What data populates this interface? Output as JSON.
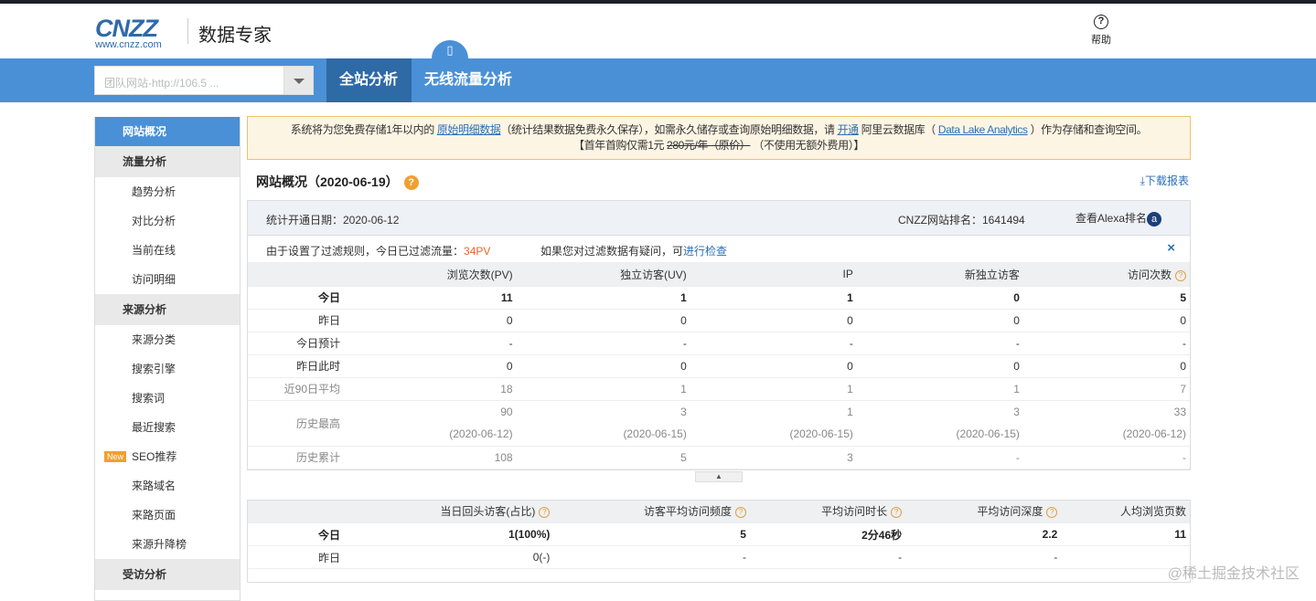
{
  "header": {
    "logo_text": "CNZZ",
    "logo_sub": "www.cnzz.com",
    "product": "数据专家",
    "help": "帮助"
  },
  "nav": {
    "site_select": "团队网站-http://106.5 ...",
    "tabs": [
      {
        "label": "全站分析",
        "active": true
      },
      {
        "label": "无线流量分析",
        "active": false
      }
    ]
  },
  "sidebar": {
    "items": [
      {
        "label": "网站概况",
        "type": "active"
      },
      {
        "label": "流量分析",
        "type": "group"
      },
      {
        "label": "趋势分析",
        "type": "item"
      },
      {
        "label": "对比分析",
        "type": "item"
      },
      {
        "label": "当前在线",
        "type": "item"
      },
      {
        "label": "访问明细",
        "type": "item"
      },
      {
        "label": "来源分析",
        "type": "group"
      },
      {
        "label": "来源分类",
        "type": "item"
      },
      {
        "label": "搜索引擎",
        "type": "item"
      },
      {
        "label": "搜索词",
        "type": "item"
      },
      {
        "label": "最近搜索",
        "type": "item"
      },
      {
        "label": "SEO推荐",
        "type": "item",
        "badge": "New"
      },
      {
        "label": "来路域名",
        "type": "item"
      },
      {
        "label": "来路页面",
        "type": "item"
      },
      {
        "label": "来源升降榜",
        "type": "item"
      },
      {
        "label": "受访分析",
        "type": "group"
      }
    ]
  },
  "notice": {
    "t1": "系统将为您免费存储1年以内的 ",
    "link1": "原始明细数据",
    "t2": "（统计结果数据免费永久保存），如需永久储存或查询原始明细数据，请 ",
    "link2": "开通",
    "t3": " 阿里云数据库（ ",
    "link3": "Data Lake Analytics",
    "t4": " ）作为存储和查询空间。",
    "t5": "【首年首购仅需1元 ",
    "strike": "280元/年（原价）",
    "t6": " （不使用无额外费用）】"
  },
  "overview": {
    "title": "网站概况（2020-06-19）",
    "download": "下载报表",
    "open_date": "统计开通日期：2020-06-12",
    "rank": "CNZZ网站排名：1641494",
    "alexa": "查看Alexa排名",
    "filter_text": "由于设置了过滤规则，今日已过滤流量：",
    "filter_value": "34PV",
    "filter_q": "如果您对过滤数据有疑问，可",
    "filter_link": "进行检查",
    "close": "×",
    "columns": [
      "浏览次数(PV)",
      "独立访客(UV)",
      "IP",
      "新独立访客",
      "访问次数"
    ],
    "rows": [
      {
        "label": "今日",
        "values": [
          "11",
          "1",
          "1",
          "0",
          "5"
        ],
        "style": "bold"
      },
      {
        "label": "昨日",
        "values": [
          "0",
          "0",
          "0",
          "0",
          "0"
        ]
      },
      {
        "label": "今日预计",
        "values": [
          "-",
          "-",
          "-",
          "-",
          "-"
        ]
      },
      {
        "label": "昨日此时",
        "values": [
          "0",
          "0",
          "0",
          "0",
          "0"
        ]
      },
      {
        "label": "近90日平均",
        "values": [
          "18",
          "1",
          "1",
          "1",
          "7"
        ],
        "style": "gray"
      },
      {
        "label": "历史最高",
        "values": [
          "90",
          "3",
          "1",
          "3",
          "33"
        ],
        "style": "gray",
        "sub": [
          "(2020-06-12)",
          "(2020-06-15)",
          "(2020-06-15)",
          "(2020-06-15)",
          "(2020-06-12)"
        ]
      },
      {
        "label": "历史累计",
        "values": [
          "108",
          "5",
          "3",
          "-",
          "-"
        ],
        "style": "gray"
      }
    ]
  },
  "second": {
    "columns": [
      "当日回头访客(占比)",
      "访客平均访问频度",
      "平均访问时长",
      "平均访问深度",
      "人均浏览页数"
    ],
    "help": [
      true,
      true,
      true,
      true,
      false
    ],
    "rows": [
      {
        "label": "今日",
        "values": [
          "1(100%)",
          "5",
          "2分46秒",
          "2.2",
          "11"
        ],
        "style": "bold"
      },
      {
        "label": "昨日",
        "values": [
          "0(-)",
          "-",
          "-",
          "-",
          ""
        ]
      }
    ]
  },
  "watermark": "@稀土掘金技术社区"
}
